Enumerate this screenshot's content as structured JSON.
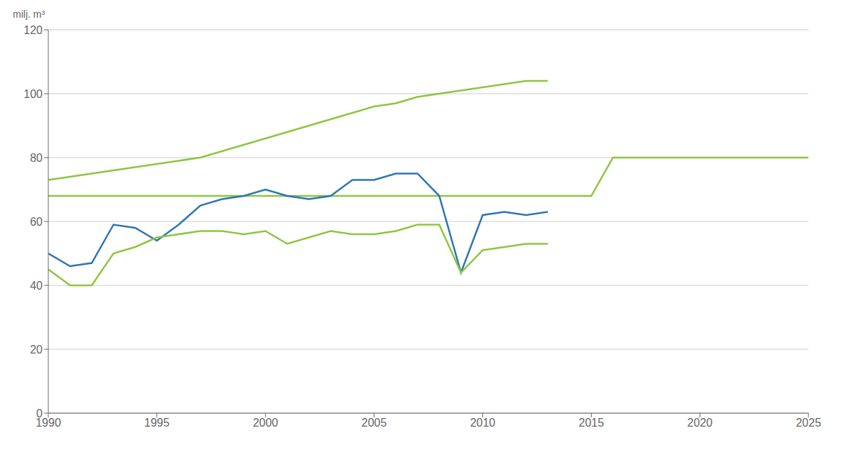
{
  "chart_data": {
    "type": "line",
    "ylabel": "milj. m³",
    "x": [
      1990,
      1991,
      1992,
      1993,
      1994,
      1995,
      1996,
      1997,
      1998,
      1999,
      2000,
      2001,
      2002,
      2003,
      2004,
      2005,
      2006,
      2007,
      2008,
      2009,
      2010,
      2011,
      2012,
      2013,
      2014,
      2015,
      2016,
      2017,
      2018,
      2019,
      2020,
      2021,
      2022,
      2023,
      2024,
      2025
    ],
    "xlim": [
      1990,
      2025
    ],
    "xticks": [
      1990,
      1995,
      2000,
      2005,
      2010,
      2015,
      2020,
      2025
    ],
    "ylim": [
      0,
      120
    ],
    "yticks": [
      0,
      20,
      40,
      60,
      80,
      100,
      120
    ],
    "grid": true,
    "series": [
      {
        "color": "#8dc63f",
        "values": [
          73,
          74,
          75,
          76,
          77,
          78,
          79,
          80,
          82,
          84,
          86,
          88,
          90,
          92,
          94,
          96,
          97,
          99,
          100,
          101,
          102,
          103,
          104,
          104,
          null,
          null,
          null,
          null,
          null,
          null,
          null,
          null,
          null,
          null,
          null,
          null
        ]
      },
      {
        "color": "#8dc63f",
        "values": [
          68,
          68,
          68,
          68,
          68,
          68,
          68,
          68,
          68,
          68,
          68,
          68,
          68,
          68,
          68,
          68,
          68,
          68,
          68,
          68,
          68,
          68,
          68,
          68,
          68,
          68,
          80,
          80,
          80,
          80,
          80,
          80,
          80,
          80,
          80,
          80
        ]
      },
      {
        "color": "#2e75b6",
        "values": [
          50,
          46,
          47,
          59,
          58,
          54,
          59,
          65,
          67,
          68,
          70,
          68,
          67,
          68,
          73,
          73,
          75,
          75,
          68,
          44,
          62,
          63,
          62,
          63,
          null,
          null,
          null,
          null,
          null,
          null,
          null,
          null,
          null,
          null,
          null,
          null
        ]
      },
      {
        "color": "#8dc63f",
        "values": [
          45,
          40,
          40,
          50,
          52,
          55,
          56,
          57,
          57,
          56,
          57,
          53,
          55,
          57,
          56,
          56,
          57,
          59,
          59,
          44,
          51,
          52,
          53,
          53,
          null,
          null,
          null,
          null,
          null,
          null,
          null,
          null,
          null,
          null,
          null,
          null
        ]
      }
    ]
  }
}
